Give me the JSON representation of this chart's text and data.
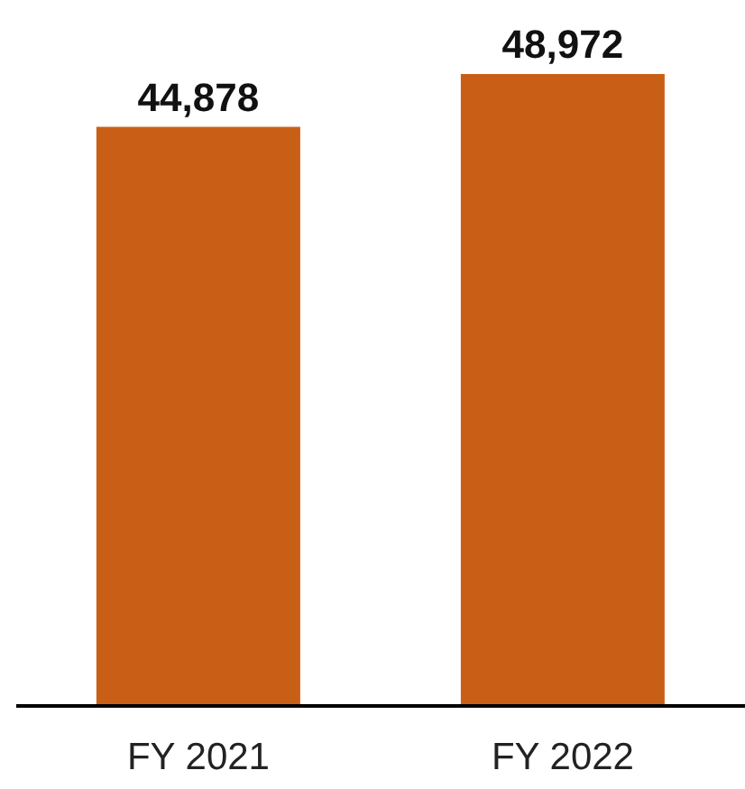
{
  "chart_data": {
    "type": "bar",
    "categories": [
      "FY 2021",
      "FY 2022"
    ],
    "values": [
      44878,
      48972
    ],
    "value_labels": [
      "44,878",
      "48,972"
    ],
    "color": "#c95f16"
  }
}
